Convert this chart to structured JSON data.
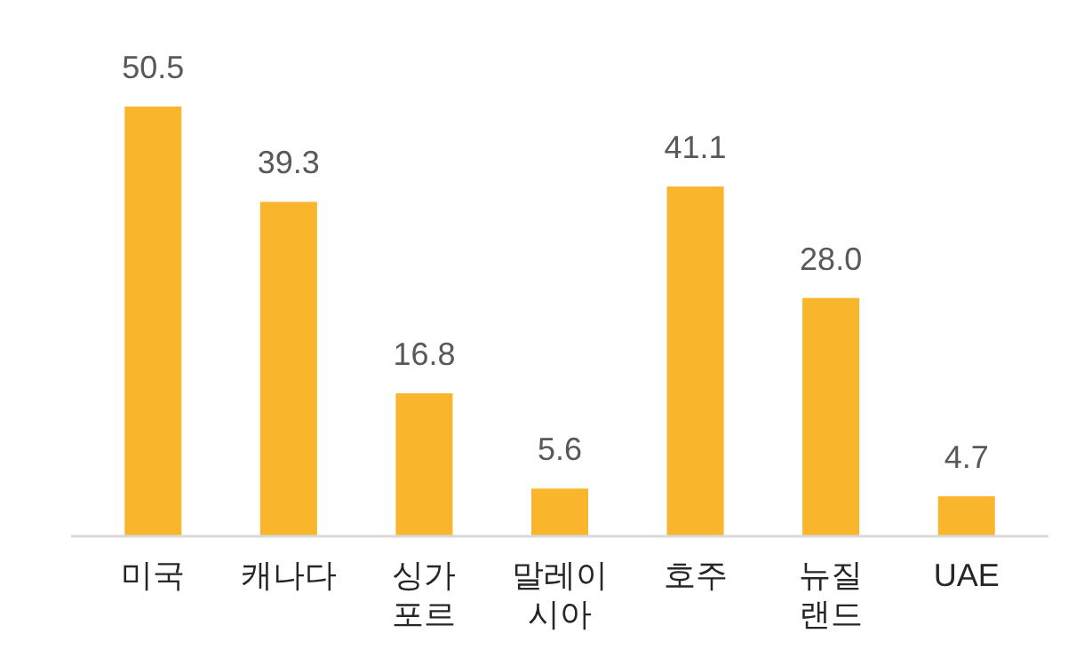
{
  "chart_data": {
    "type": "bar",
    "categories": [
      "미국",
      "캐나다",
      "싱가포르",
      "말레이시아",
      "호주",
      "뉴질랜드",
      "UAE"
    ],
    "values": [
      50.5,
      39.3,
      16.8,
      5.6,
      41.1,
      28.0,
      4.7
    ],
    "value_labels": [
      "50.5",
      "39.3",
      "16.8",
      "5.6",
      "41.1",
      "28.0",
      "4.7"
    ],
    "color": "#f9b52c"
  }
}
